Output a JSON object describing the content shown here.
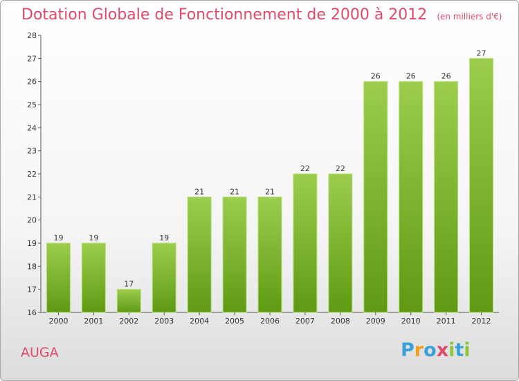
{
  "chart_data": {
    "type": "bar",
    "title": "Dotation Globale de Fonctionnement de 2000 à 2012",
    "subtitle": "(en milliers d'€)",
    "xlabel": "",
    "ylabel": "",
    "categories": [
      "2000",
      "2001",
      "2002",
      "2003",
      "2004",
      "2005",
      "2006",
      "2007",
      "2008",
      "2009",
      "2010",
      "2011",
      "2012"
    ],
    "values": [
      19,
      19,
      17,
      19,
      21,
      21,
      21,
      22,
      22,
      26,
      26,
      26,
      27
    ],
    "ylim": [
      16,
      28
    ],
    "yticks": [
      16,
      17,
      18,
      19,
      20,
      21,
      22,
      23,
      24,
      25,
      26,
      27,
      28
    ],
    "grid": false,
    "bar_color": "#7fc12e"
  },
  "commune": "AUGA",
  "logo": {
    "letters": [
      "P",
      "r",
      "o",
      "x",
      "i",
      "t",
      "i"
    ],
    "colors": [
      "#3aa0d8",
      "#f0a020",
      "#3aa0d8",
      "#e04a6a",
      "#8cc43a",
      "#3aa0d8",
      "#8cc43a"
    ]
  },
  "colors": {
    "accent": "#e04a6a",
    "axis": "#555555"
  }
}
